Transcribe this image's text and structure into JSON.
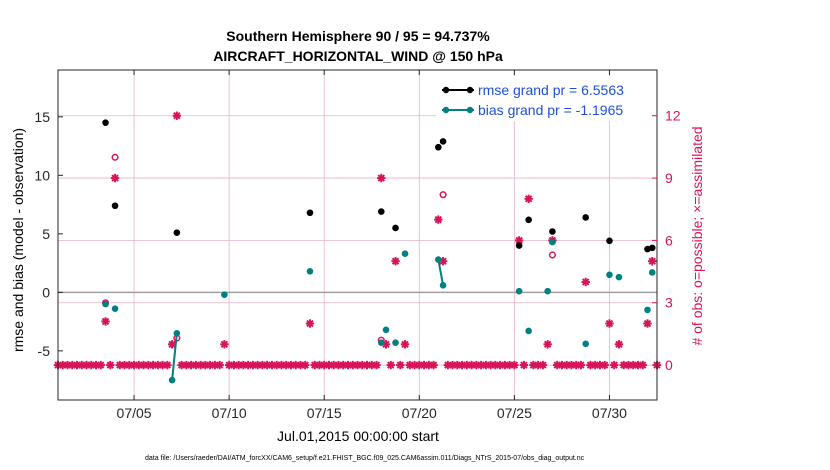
{
  "chart_data": {
    "type": "scatter",
    "title_line1": "Southern Hemisphere 90 / 95 = 94.737%",
    "title_line2": "AIRCRAFT_HORIZONTAL_WIND @ 150 hPa",
    "xlabel": "Jul.01,2015 00:00:00 start",
    "ylabel_left": "rmse and bias (model - observation)",
    "ylabel_right": "# of obs: o=possible; ×=assimilated",
    "xlim": [
      0.5,
      32
    ],
    "ylim_left": [
      -9.2,
      19
    ],
    "ylim_right": [
      -1.68,
      14.2
    ],
    "x_ticks": [
      4.5,
      9.5,
      14.5,
      19.5,
      24.5,
      29.5
    ],
    "x_tick_labels": [
      "07/05",
      "07/10",
      "07/15",
      "07/20",
      "07/25",
      "07/30"
    ],
    "y_ticks_left": [
      -5,
      0,
      5,
      10,
      15
    ],
    "y_tick_labels_left": [
      "-5",
      "0",
      "5",
      "10",
      "15"
    ],
    "y_ticks_right": [
      0,
      3,
      6,
      9,
      12
    ],
    "y_tick_labels_right": [
      "0",
      "3",
      "6",
      "9",
      "12"
    ],
    "grid": true,
    "legend_position": "top-right",
    "legend": [
      "rmse grand pr = 6.5563",
      "bias grand pr = -1.1965"
    ],
    "colors": {
      "rmse": "#000000",
      "bias": "#008080",
      "obs": "#d6145a",
      "zero_line": "#a0a0a0",
      "grid": "#e6b3c8"
    },
    "series": [
      {
        "name": "rmse grand pr = 6.5563",
        "axis": "left",
        "points": [
          [
            3,
            14.5
          ],
          [
            3.5,
            7.4
          ],
          [
            6.75,
            5.1
          ],
          [
            13.75,
            6.8
          ],
          [
            17.5,
            6.9
          ],
          [
            18.25,
            5.5
          ],
          [
            20.5,
            12.4
          ],
          [
            20.75,
            12.9
          ],
          [
            24.75,
            4.0
          ],
          [
            25.25,
            6.2
          ],
          [
            26.5,
            5.2
          ],
          [
            28.25,
            6.4
          ],
          [
            29.5,
            4.4
          ],
          [
            31.5,
            3.7
          ],
          [
            31.75,
            3.8
          ]
        ],
        "segments": []
      },
      {
        "name": "bias grand pr = -1.1965",
        "axis": "left",
        "points": [
          [
            3,
            -1.0
          ],
          [
            3.5,
            -1.4
          ],
          [
            6.5,
            -7.5
          ],
          [
            6.75,
            -3.5
          ],
          [
            9.25,
            -0.2
          ],
          [
            13.75,
            1.8
          ],
          [
            17.5,
            -4.3
          ],
          [
            17.75,
            -3.2
          ],
          [
            18.25,
            -4.3
          ],
          [
            18.75,
            3.3
          ],
          [
            20.5,
            2.8
          ],
          [
            20.75,
            0.6
          ],
          [
            24.75,
            0.1
          ],
          [
            25.25,
            -3.3
          ],
          [
            26.25,
            0.1
          ],
          [
            26.5,
            4.3
          ],
          [
            28.25,
            -4.4
          ],
          [
            29.5,
            1.5
          ],
          [
            30.0,
            1.3
          ],
          [
            31.5,
            -1.5
          ],
          [
            31.75,
            1.7
          ]
        ],
        "segments": [
          [
            [
              6.5,
              -7.5
            ],
            [
              6.75,
              -3.5
            ]
          ],
          [
            [
              20.5,
              2.8
            ],
            [
              20.75,
              0.6
            ]
          ]
        ]
      },
      {
        "name": "possible",
        "axis": "right",
        "marker": "circle",
        "points": [
          [
            3,
            3
          ],
          [
            3.5,
            10
          ],
          [
            6.75,
            1.3
          ],
          [
            17.5,
            1.2
          ],
          [
            20.75,
            8.2
          ],
          [
            26.5,
            5.3
          ]
        ]
      },
      {
        "name": "assimilated",
        "axis": "right",
        "marker": "asterisk",
        "points": [
          [
            3,
            2.1
          ],
          [
            3.5,
            9
          ],
          [
            6.5,
            1
          ],
          [
            6.75,
            12
          ],
          [
            9.25,
            1
          ],
          [
            13.75,
            2
          ],
          [
            17.5,
            9
          ],
          [
            17.75,
            1
          ],
          [
            18.25,
            5
          ],
          [
            18.75,
            1
          ],
          [
            20.5,
            7
          ],
          [
            20.75,
            5
          ],
          [
            24.75,
            6
          ],
          [
            25.25,
            8
          ],
          [
            26.25,
            1
          ],
          [
            26.5,
            6
          ],
          [
            28.25,
            4
          ],
          [
            29.5,
            2
          ],
          [
            30.0,
            1
          ],
          [
            31.5,
            2
          ],
          [
            31.75,
            5
          ]
        ],
        "baseline": 0,
        "baseline_x_start": 0.5,
        "baseline_x_end": 32,
        "baseline_step": 0.25
      }
    ],
    "footnote": "data file: /Users/raeder/DAI/ATM_forcXX/CAM6_setup/f.e21.FHIST_BGC.f09_025.CAM6assim.011/Diags_NTrS_2015-07/obs_diag_output.nc"
  }
}
